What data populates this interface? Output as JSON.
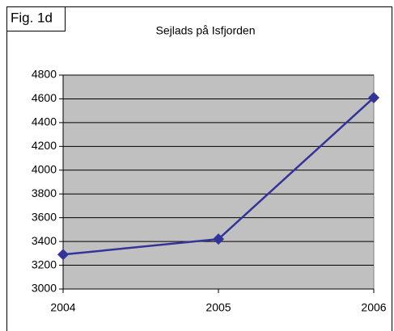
{
  "chart_data": {
    "type": "line",
    "figure_label": "Fig. 1d",
    "title": "Sejlads på Isfjorden",
    "categories": [
      "2004",
      "2005",
      "2006"
    ],
    "series": [
      {
        "name": "Sejlads",
        "color": "#333399",
        "values": [
          3290,
          3420,
          4610
        ]
      }
    ],
    "ylim": [
      3000,
      4800
    ],
    "yticks": [
      3000,
      3200,
      3400,
      3600,
      3800,
      4000,
      4200,
      4400,
      4600,
      4800
    ],
    "grid": true,
    "plot_background": "#c0c0c0"
  }
}
